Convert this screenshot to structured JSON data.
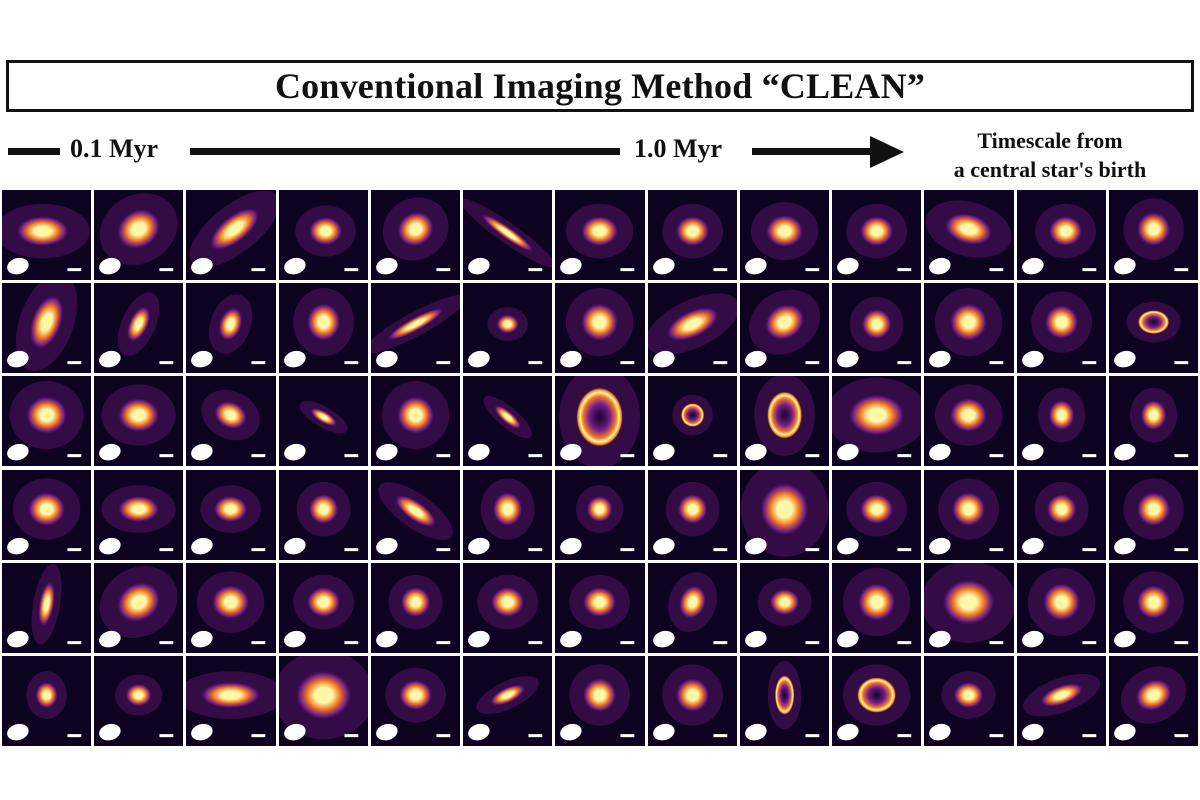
{
  "figure": {
    "title": "Conventional Imaging Method “CLEAN”",
    "timeline": {
      "start_label": "0.1 Myr",
      "mid_label": "1.0 Myr",
      "note_line1": "Timescale from",
      "note_line2": "a central star's birth"
    },
    "grid": {
      "rows": 6,
      "columns": 13
    },
    "colors": {
      "background": "#0d0220",
      "core": "#fff7a8",
      "mid": "#f47b20",
      "edge": "#7a1f8f",
      "beam": "#ffffff"
    },
    "panel_content": "protoplanetary disk continuum image with beam ellipse and scale bar"
  }
}
